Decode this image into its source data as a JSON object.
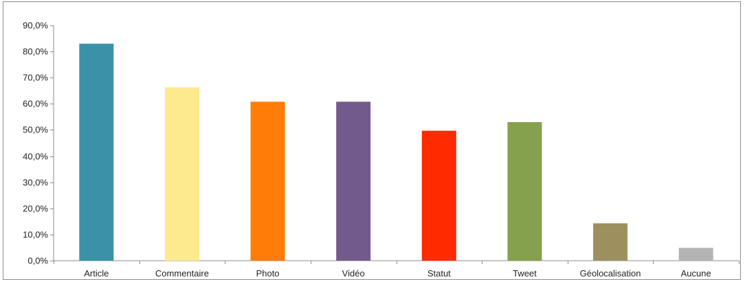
{
  "chart_data": {
    "type": "bar",
    "title": "",
    "xlabel": "",
    "ylabel": "",
    "categories": [
      "Article",
      "Commentaire",
      "Photo",
      "Vidéo",
      "Statut",
      "Tweet",
      "Géolocalisation",
      "Aucune"
    ],
    "values": [
      83.0,
      66.3,
      60.8,
      60.8,
      49.7,
      53.0,
      14.3,
      4.9
    ],
    "colors": [
      "#3b92a8",
      "#fde98e",
      "#fe7c07",
      "#735a8c",
      "#fe2a00",
      "#86a14e",
      "#9d905f",
      "#b3b3b3"
    ],
    "ylim": [
      0,
      90
    ],
    "yticks": [
      0,
      10,
      20,
      30,
      40,
      50,
      60,
      70,
      80,
      90
    ],
    "ytick_labels": [
      "0,0%",
      "10,0%",
      "20,0%",
      "30,0%",
      "40,0%",
      "50,0%",
      "60,0%",
      "70,0%",
      "80,0%",
      "90,0%"
    ],
    "grid": false,
    "legend": "none"
  }
}
